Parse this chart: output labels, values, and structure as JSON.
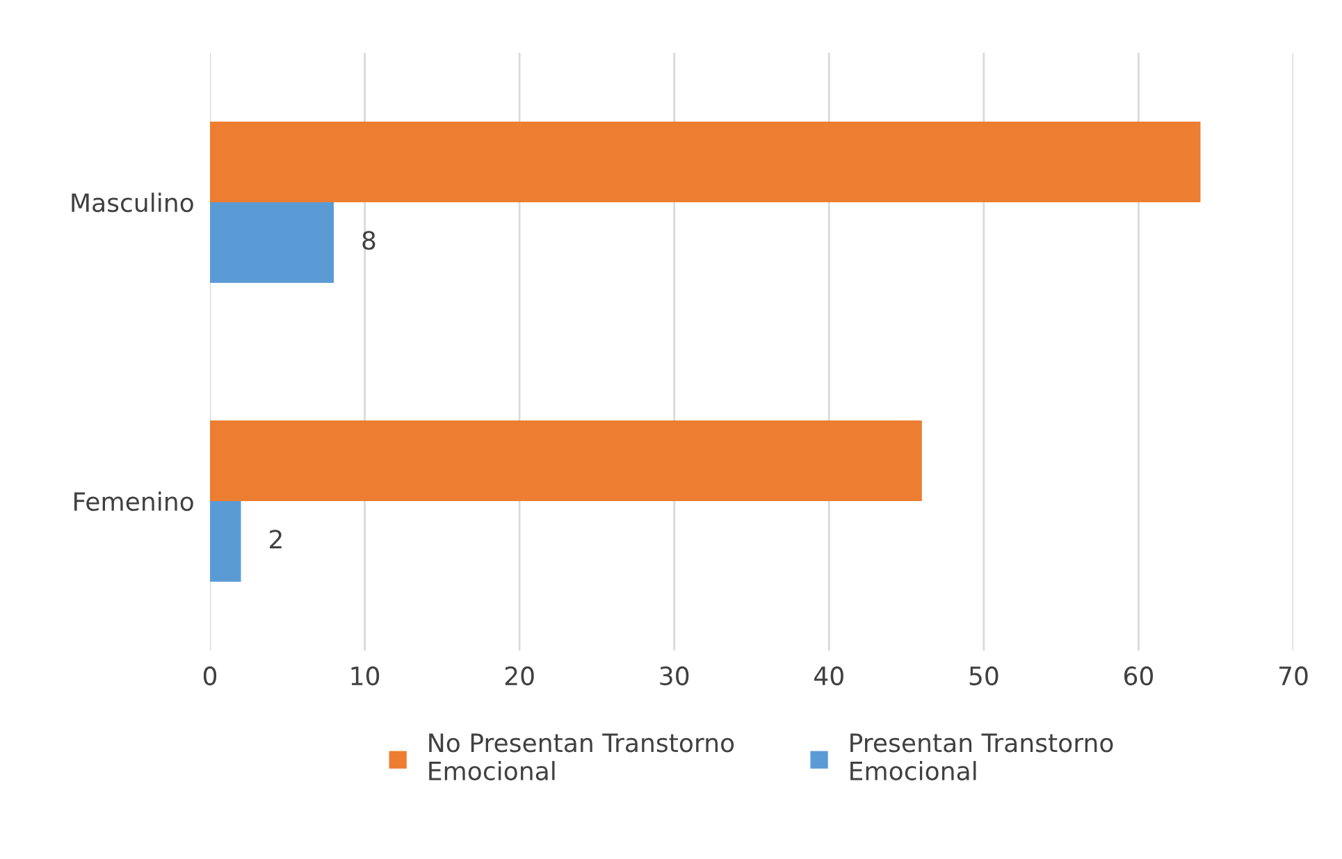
{
  "chart_data": {
    "type": "bar",
    "orientation": "horizontal",
    "categories": [
      "Masculino",
      "Femenino"
    ],
    "series": [
      {
        "name": "No Presentan Transtorno\nEmocional",
        "color": "#ed7d31",
        "values": [
          64,
          46
        ]
      },
      {
        "name": "Presentan Transtorno\nEmocional",
        "color": "#5b9bd5",
        "values": [
          8,
          2
        ],
        "value_labels": [
          "8",
          "2"
        ]
      }
    ],
    "xlim": [
      0,
      70
    ],
    "xticks": [
      0,
      10,
      20,
      30,
      40,
      50,
      60,
      70
    ],
    "grid": "x",
    "legend": "bottom"
  }
}
